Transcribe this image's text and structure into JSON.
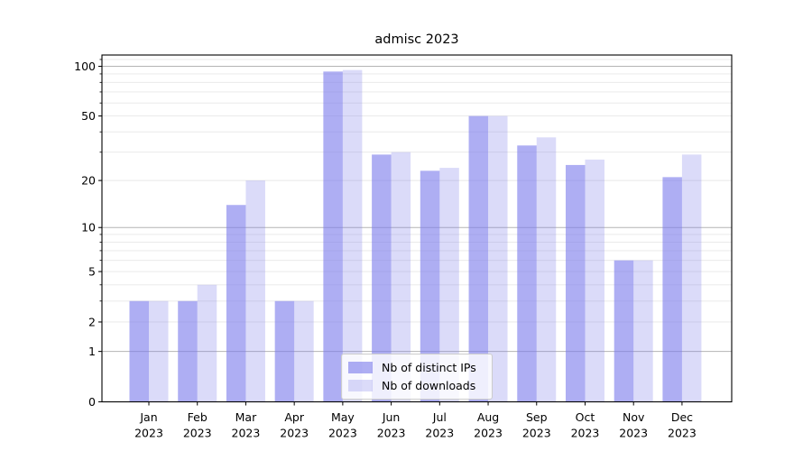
{
  "chart_data": {
    "type": "bar",
    "title": "admisc 2023",
    "x_categories": [
      "Jan",
      "Feb",
      "Mar",
      "Apr",
      "May",
      "Jun",
      "Jul",
      "Aug",
      "Sep",
      "Oct",
      "Nov",
      "Dec"
    ],
    "x_year": "2023",
    "series": [
      {
        "name": "Nb of distinct IPs",
        "color": "#7d7deb",
        "fill_opacity": 0.62,
        "values": [
          3,
          3,
          14,
          3,
          93,
          29,
          23,
          50,
          33,
          25,
          6,
          21
        ]
      },
      {
        "name": "Nb of downloads",
        "color": "#7d7deb",
        "fill_opacity": 0.28,
        "values": [
          3,
          4,
          20,
          3,
          95,
          30,
          24,
          50,
          37,
          27,
          6,
          29
        ]
      }
    ],
    "yscale": "log1p",
    "ylim": [
      0,
      117
    ],
    "yticks": [
      0,
      1,
      2,
      5,
      10,
      20,
      50,
      100
    ],
    "grid": {
      "major": [
        1,
        10,
        100
      ],
      "minor": [
        2,
        3,
        4,
        5,
        6,
        7,
        8,
        9,
        20,
        30,
        40,
        50,
        60,
        70,
        80,
        90,
        110
      ]
    },
    "colors": {
      "grid_major": "#b4b4b4",
      "grid_minor": "#e7e7e7",
      "spine": "#000000",
      "background": "#ffffff"
    },
    "legend_position": "lower center",
    "xlabel": "",
    "ylabel": ""
  }
}
